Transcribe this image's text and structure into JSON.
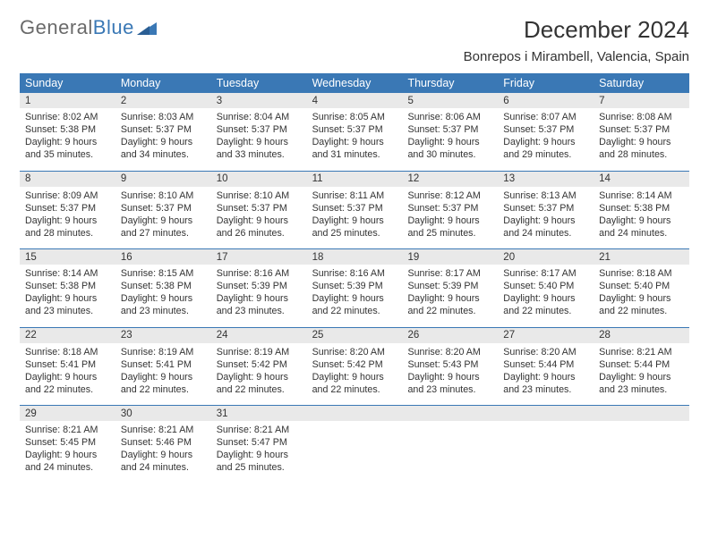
{
  "logo": {
    "text1": "General",
    "text2": "Blue"
  },
  "title": "December 2024",
  "location": "Bonrepos i Mirambell, Valencia, Spain",
  "colors": {
    "header_bg": "#3a78b5",
    "daynum_bg": "#e9e9e9",
    "text": "#333333",
    "logo_gray": "#6a6a6a"
  },
  "dow": [
    "Sunday",
    "Monday",
    "Tuesday",
    "Wednesday",
    "Thursday",
    "Friday",
    "Saturday"
  ],
  "weeks": [
    [
      {
        "n": "1",
        "sunrise": "8:02 AM",
        "sunset": "5:38 PM",
        "daylight": "9 hours and 35 minutes."
      },
      {
        "n": "2",
        "sunrise": "8:03 AM",
        "sunset": "5:37 PM",
        "daylight": "9 hours and 34 minutes."
      },
      {
        "n": "3",
        "sunrise": "8:04 AM",
        "sunset": "5:37 PM",
        "daylight": "9 hours and 33 minutes."
      },
      {
        "n": "4",
        "sunrise": "8:05 AM",
        "sunset": "5:37 PM",
        "daylight": "9 hours and 31 minutes."
      },
      {
        "n": "5",
        "sunrise": "8:06 AM",
        "sunset": "5:37 PM",
        "daylight": "9 hours and 30 minutes."
      },
      {
        "n": "6",
        "sunrise": "8:07 AM",
        "sunset": "5:37 PM",
        "daylight": "9 hours and 29 minutes."
      },
      {
        "n": "7",
        "sunrise": "8:08 AM",
        "sunset": "5:37 PM",
        "daylight": "9 hours and 28 minutes."
      }
    ],
    [
      {
        "n": "8",
        "sunrise": "8:09 AM",
        "sunset": "5:37 PM",
        "daylight": "9 hours and 28 minutes."
      },
      {
        "n": "9",
        "sunrise": "8:10 AM",
        "sunset": "5:37 PM",
        "daylight": "9 hours and 27 minutes."
      },
      {
        "n": "10",
        "sunrise": "8:10 AM",
        "sunset": "5:37 PM",
        "daylight": "9 hours and 26 minutes."
      },
      {
        "n": "11",
        "sunrise": "8:11 AM",
        "sunset": "5:37 PM",
        "daylight": "9 hours and 25 minutes."
      },
      {
        "n": "12",
        "sunrise": "8:12 AM",
        "sunset": "5:37 PM",
        "daylight": "9 hours and 25 minutes."
      },
      {
        "n": "13",
        "sunrise": "8:13 AM",
        "sunset": "5:37 PM",
        "daylight": "9 hours and 24 minutes."
      },
      {
        "n": "14",
        "sunrise": "8:14 AM",
        "sunset": "5:38 PM",
        "daylight": "9 hours and 24 minutes."
      }
    ],
    [
      {
        "n": "15",
        "sunrise": "8:14 AM",
        "sunset": "5:38 PM",
        "daylight": "9 hours and 23 minutes."
      },
      {
        "n": "16",
        "sunrise": "8:15 AM",
        "sunset": "5:38 PM",
        "daylight": "9 hours and 23 minutes."
      },
      {
        "n": "17",
        "sunrise": "8:16 AM",
        "sunset": "5:39 PM",
        "daylight": "9 hours and 23 minutes."
      },
      {
        "n": "18",
        "sunrise": "8:16 AM",
        "sunset": "5:39 PM",
        "daylight": "9 hours and 22 minutes."
      },
      {
        "n": "19",
        "sunrise": "8:17 AM",
        "sunset": "5:39 PM",
        "daylight": "9 hours and 22 minutes."
      },
      {
        "n": "20",
        "sunrise": "8:17 AM",
        "sunset": "5:40 PM",
        "daylight": "9 hours and 22 minutes."
      },
      {
        "n": "21",
        "sunrise": "8:18 AM",
        "sunset": "5:40 PM",
        "daylight": "9 hours and 22 minutes."
      }
    ],
    [
      {
        "n": "22",
        "sunrise": "8:18 AM",
        "sunset": "5:41 PM",
        "daylight": "9 hours and 22 minutes."
      },
      {
        "n": "23",
        "sunrise": "8:19 AM",
        "sunset": "5:41 PM",
        "daylight": "9 hours and 22 minutes."
      },
      {
        "n": "24",
        "sunrise": "8:19 AM",
        "sunset": "5:42 PM",
        "daylight": "9 hours and 22 minutes."
      },
      {
        "n": "25",
        "sunrise": "8:20 AM",
        "sunset": "5:42 PM",
        "daylight": "9 hours and 22 minutes."
      },
      {
        "n": "26",
        "sunrise": "8:20 AM",
        "sunset": "5:43 PM",
        "daylight": "9 hours and 23 minutes."
      },
      {
        "n": "27",
        "sunrise": "8:20 AM",
        "sunset": "5:44 PM",
        "daylight": "9 hours and 23 minutes."
      },
      {
        "n": "28",
        "sunrise": "8:21 AM",
        "sunset": "5:44 PM",
        "daylight": "9 hours and 23 minutes."
      }
    ],
    [
      {
        "n": "29",
        "sunrise": "8:21 AM",
        "sunset": "5:45 PM",
        "daylight": "9 hours and 24 minutes."
      },
      {
        "n": "30",
        "sunrise": "8:21 AM",
        "sunset": "5:46 PM",
        "daylight": "9 hours and 24 minutes."
      },
      {
        "n": "31",
        "sunrise": "8:21 AM",
        "sunset": "5:47 PM",
        "daylight": "9 hours and 25 minutes."
      },
      null,
      null,
      null,
      null
    ]
  ],
  "labels": {
    "sunrise": "Sunrise:",
    "sunset": "Sunset:",
    "daylight": "Daylight:"
  }
}
